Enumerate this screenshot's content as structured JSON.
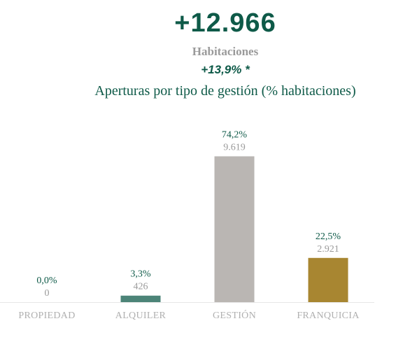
{
  "header": {
    "total": "+12.966",
    "unit": "Habitaciones",
    "growth": "+13,9% *"
  },
  "chart_data": {
    "type": "bar",
    "title": "Aperturas por tipo de gestión (% habitaciones)",
    "xlabel": "",
    "ylabel": "",
    "ylim": [
      0,
      100
    ],
    "grid": false,
    "categories": [
      "PROPIEDAD",
      "ALQUILER",
      "GESTIÓN",
      "FRANQUICIA"
    ],
    "values": [
      0.0,
      3.3,
      74.2,
      22.5
    ],
    "percent_labels": [
      "0,0%",
      "3,3%",
      "74,2%",
      "22,5%"
    ],
    "count_labels": [
      "0",
      "426",
      "9.619",
      "2.921"
    ],
    "colors": [
      "#0e5a48",
      "#4c8478",
      "#bab6b3",
      "#a88631"
    ],
    "axis_color": "#e6e6e6"
  }
}
